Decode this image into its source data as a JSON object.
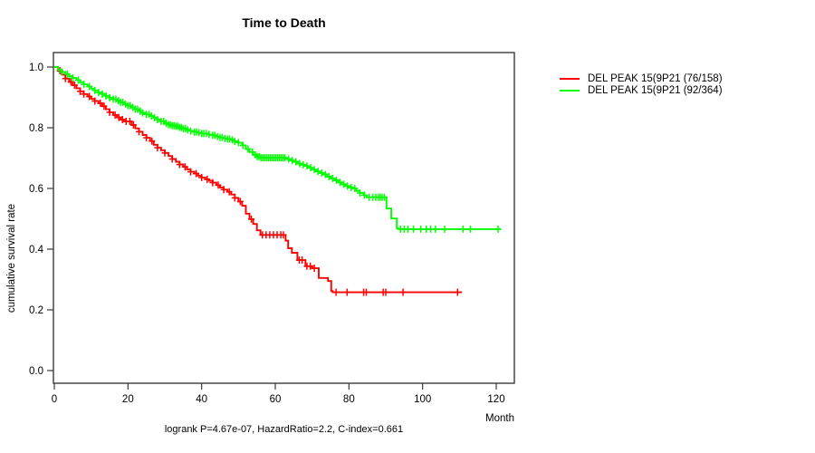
{
  "title": "Time to Death",
  "annotation": "logrank P=4.67e-07, HazardRatio=2.2, C-index=0.661",
  "legend": {
    "items": [
      {
        "label": "DEL PEAK 15(9P21 (76/158)",
        "color": "#ff0000"
      },
      {
        "label": "DEL PEAK 15(9P21 (92/364)",
        "color": "#00ff00"
      }
    ]
  },
  "chart_data": {
    "type": "line",
    "subtype": "kaplan-meier-step",
    "title": "Time to Death",
    "xlabel": "Month",
    "ylabel": "cumulative survival rate",
    "xlim": [
      0,
      125
    ],
    "ylim": [
      -0.04,
      1.04
    ],
    "x_ticks": [
      0,
      20,
      40,
      60,
      80,
      100,
      120
    ],
    "y_ticks": [
      "0.0",
      "0.2",
      "0.4",
      "0.6",
      "0.8",
      "1.0"
    ],
    "grid": false,
    "legend_position": "right-outside",
    "axis_color": "#3a3a3a",
    "series": [
      {
        "name": "DEL PEAK 15(9P21 (76/158)",
        "events": "76/158",
        "color": "#ff0000",
        "final_value": 0.258,
        "points": [
          [
            0,
            1.0
          ],
          [
            1,
            0.988
          ],
          [
            2,
            0.975
          ],
          [
            3,
            0.962
          ],
          [
            4,
            0.951
          ],
          [
            5,
            0.94
          ],
          [
            6,
            0.93
          ],
          [
            7,
            0.92
          ],
          [
            8,
            0.911
          ],
          [
            9,
            0.903
          ],
          [
            10,
            0.895
          ],
          [
            11,
            0.888
          ],
          [
            12,
            0.881
          ],
          [
            13,
            0.871
          ],
          [
            14,
            0.861
          ],
          [
            15,
            0.851
          ],
          [
            16,
            0.842
          ],
          [
            17,
            0.834
          ],
          [
            18,
            0.827
          ],
          [
            19,
            0.821
          ],
          [
            21,
            0.809
          ],
          [
            22,
            0.798
          ],
          [
            23,
            0.787
          ],
          [
            24,
            0.776
          ],
          [
            25,
            0.767
          ],
          [
            26,
            0.756
          ],
          [
            27,
            0.744
          ],
          [
            28,
            0.734
          ],
          [
            29,
            0.726
          ],
          [
            30,
            0.717
          ],
          [
            31,
            0.707
          ],
          [
            32,
            0.697
          ],
          [
            33,
            0.688
          ],
          [
            34,
            0.679
          ],
          [
            35,
            0.671
          ],
          [
            36,
            0.663
          ],
          [
            37,
            0.655
          ],
          [
            38,
            0.649
          ],
          [
            39,
            0.642
          ],
          [
            40,
            0.636
          ],
          [
            41,
            0.63
          ],
          [
            42,
            0.625
          ],
          [
            43,
            0.619
          ],
          [
            44,
            0.611
          ],
          [
            45,
            0.603
          ],
          [
            46,
            0.596
          ],
          [
            47,
            0.589
          ],
          [
            48,
            0.58
          ],
          [
            49,
            0.569
          ],
          [
            50,
            0.557
          ],
          [
            51,
            0.543
          ],
          [
            52,
            0.517
          ],
          [
            53,
            0.499
          ],
          [
            54,
            0.483
          ],
          [
            55,
            0.462
          ],
          [
            56,
            0.447
          ],
          [
            62.8,
            0.428
          ],
          [
            63.5,
            0.403
          ],
          [
            64.5,
            0.388
          ],
          [
            66,
            0.364
          ],
          [
            68.2,
            0.344
          ],
          [
            70,
            0.337
          ],
          [
            71.8,
            0.305
          ],
          [
            74.3,
            0.295
          ],
          [
            75.2,
            0.262
          ],
          [
            75.6,
            0.258
          ],
          [
            110.7,
            0.258
          ]
        ],
        "censor_months": [
          1.5,
          3,
          4.5,
          5.5,
          7,
          8,
          9.5,
          11,
          12.5,
          13.5,
          15,
          16.5,
          17.5,
          18.5,
          19.5,
          20.5,
          21.5,
          23,
          25,
          26.5,
          28,
          30,
          32,
          34,
          35.5,
          37,
          38.5,
          40,
          41.5,
          43,
          44.5,
          46,
          47.5,
          49,
          50.5,
          53.5,
          56.5,
          57.5,
          58.5,
          59.5,
          60.5,
          61.5,
          62.2,
          66.5,
          67.3,
          68.6,
          69.5,
          70.6,
          76.5,
          79.5,
          84,
          84.7,
          89.3,
          90,
          94.7,
          109.5
        ]
      },
      {
        "name": "DEL PEAK 15(9P21 (92/364)",
        "events": "92/364",
        "color": "#00ff00",
        "final_value": 0.466,
        "points": [
          [
            0,
            1.0
          ],
          [
            1,
            0.991
          ],
          [
            2,
            0.984
          ],
          [
            3,
            0.977
          ],
          [
            4,
            0.97
          ],
          [
            5,
            0.964
          ],
          [
            6,
            0.957
          ],
          [
            7,
            0.95
          ],
          [
            8,
            0.943
          ],
          [
            9,
            0.936
          ],
          [
            10,
            0.929
          ],
          [
            11,
            0.923
          ],
          [
            12,
            0.916
          ],
          [
            13,
            0.911
          ],
          [
            14,
            0.905
          ],
          [
            15,
            0.899
          ],
          [
            16,
            0.894
          ],
          [
            17,
            0.889
          ],
          [
            18,
            0.884
          ],
          [
            19,
            0.878
          ],
          [
            20,
            0.873
          ],
          [
            21,
            0.867
          ],
          [
            22,
            0.861
          ],
          [
            23,
            0.855
          ],
          [
            24,
            0.849
          ],
          [
            25,
            0.844
          ],
          [
            26,
            0.839
          ],
          [
            27,
            0.833
          ],
          [
            28,
            0.827
          ],
          [
            29,
            0.821
          ],
          [
            30,
            0.815
          ],
          [
            31,
            0.81
          ],
          [
            32,
            0.807
          ],
          [
            33,
            0.805
          ],
          [
            34,
            0.801
          ],
          [
            35,
            0.797
          ],
          [
            36,
            0.793
          ],
          [
            37,
            0.789
          ],
          [
            38,
            0.786
          ],
          [
            39,
            0.784
          ],
          [
            40,
            0.781
          ],
          [
            42,
            0.778
          ],
          [
            43,
            0.775
          ],
          [
            44,
            0.771
          ],
          [
            45,
            0.768
          ],
          [
            46,
            0.765
          ],
          [
            47,
            0.763
          ],
          [
            48,
            0.76
          ],
          [
            49,
            0.755
          ],
          [
            50,
            0.751
          ],
          [
            51,
            0.742
          ],
          [
            52,
            0.73
          ],
          [
            53,
            0.72
          ],
          [
            54,
            0.711
          ],
          [
            55,
            0.705
          ],
          [
            56,
            0.701
          ],
          [
            63,
            0.697
          ],
          [
            64,
            0.692
          ],
          [
            65,
            0.688
          ],
          [
            66,
            0.682
          ],
          [
            67,
            0.678
          ],
          [
            68,
            0.674
          ],
          [
            69,
            0.668
          ],
          [
            70,
            0.662
          ],
          [
            71,
            0.656
          ],
          [
            72,
            0.651
          ],
          [
            73,
            0.646
          ],
          [
            74,
            0.639
          ],
          [
            75,
            0.633
          ],
          [
            76,
            0.627
          ],
          [
            77,
            0.62
          ],
          [
            78,
            0.614
          ],
          [
            79,
            0.608
          ],
          [
            80,
            0.603
          ],
          [
            81,
            0.6
          ],
          [
            82,
            0.592
          ],
          [
            83,
            0.585
          ],
          [
            84,
            0.578
          ],
          [
            84.8,
            0.571
          ],
          [
            90.2,
            0.534
          ],
          [
            91.5,
            0.501
          ],
          [
            93,
            0.468
          ],
          [
            93.5,
            0.466
          ],
          [
            121.3,
            0.466
          ]
        ],
        "censor_months": [
          2,
          3.5,
          5,
          6.5,
          8,
          9.5,
          11,
          12,
          13,
          14,
          15,
          16,
          16.7,
          17.4,
          18,
          18.6,
          19.3,
          20,
          20.6,
          21.3,
          22,
          22.6,
          23.3,
          24,
          25,
          25.7,
          26.4,
          27.2,
          28,
          29,
          29.7,
          30.4,
          31,
          31.5,
          32,
          32.5,
          33,
          33.5,
          34,
          34.5,
          35,
          35.6,
          36.2,
          37,
          38,
          38.6,
          39.3,
          40,
          40.6,
          41.3,
          42,
          43,
          43.6,
          44.3,
          45,
          45.6,
          46.3,
          47,
          47.6,
          48.3,
          49,
          50,
          51.2,
          52.6,
          53.8,
          54.6,
          55.1,
          55.6,
          56.1,
          56.6,
          57.1,
          57.6,
          58.1,
          58.6,
          59.1,
          59.6,
          60.1,
          60.6,
          61.1,
          61.6,
          62.1,
          62.6,
          63.6,
          64.6,
          65.6,
          66.6,
          67.6,
          68.6,
          69.6,
          70.6,
          71.6,
          72.6,
          73.6,
          74.6,
          75.6,
          76.6,
          77.6,
          78.6,
          79.6,
          80.6,
          81.6,
          83,
          84.2,
          85.5,
          86.5,
          87.3,
          88,
          88.5,
          89,
          89.6,
          94,
          95,
          96,
          97.5,
          99.5,
          101,
          102.2,
          103.5,
          106,
          111,
          113,
          120.5
        ]
      }
    ],
    "annotation": "logrank P=4.67e-07, HazardRatio=2.2, C-index=0.661"
  }
}
